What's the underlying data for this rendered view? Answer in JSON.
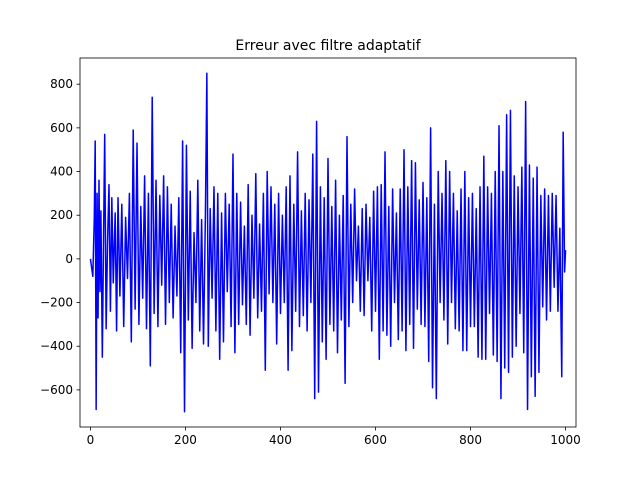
{
  "chart_data": {
    "type": "line",
    "title": "Erreur avec filtre adaptatif",
    "xlabel": "",
    "ylabel": "",
    "xlim": [
      -22,
      1022
    ],
    "ylim": [
      -770,
      920
    ],
    "xticks": [
      0,
      200,
      400,
      600,
      800,
      1000
    ],
    "yticks": [
      -600,
      -400,
      -200,
      0,
      200,
      400,
      600,
      800
    ],
    "grid": false,
    "series": [
      {
        "name": "",
        "color": "#0000ff",
        "points": [
          [
            0,
            0
          ],
          [
            5,
            -80
          ],
          [
            8,
            180
          ],
          [
            10,
            540
          ],
          [
            12,
            -690
          ],
          [
            14,
            300
          ],
          [
            16,
            -270
          ],
          [
            18,
            360
          ],
          [
            20,
            -150
          ],
          [
            22,
            220
          ],
          [
            25,
            -450
          ],
          [
            28,
            180
          ],
          [
            30,
            570
          ],
          [
            33,
            -320
          ],
          [
            36,
            80
          ],
          [
            39,
            340
          ],
          [
            42,
            -240
          ],
          [
            45,
            280
          ],
          [
            48,
            -110
          ],
          [
            52,
            210
          ],
          [
            55,
            -330
          ],
          [
            58,
            280
          ],
          [
            62,
            -170
          ],
          [
            66,
            250
          ],
          [
            70,
            -310
          ],
          [
            74,
            190
          ],
          [
            78,
            -90
          ],
          [
            82,
            300
          ],
          [
            86,
            -380
          ],
          [
            90,
            590
          ],
          [
            94,
            -230
          ],
          [
            98,
            530
          ],
          [
            102,
            -300
          ],
          [
            106,
            240
          ],
          [
            110,
            -180
          ],
          [
            114,
            380
          ],
          [
            118,
            -320
          ],
          [
            122,
            300
          ],
          [
            126,
            -490
          ],
          [
            130,
            740
          ],
          [
            134,
            -250
          ],
          [
            138,
            360
          ],
          [
            142,
            -310
          ],
          [
            146,
            290
          ],
          [
            150,
            -120
          ],
          [
            154,
            380
          ],
          [
            158,
            -300
          ],
          [
            162,
            330
          ],
          [
            166,
            -200
          ],
          [
            170,
            250
          ],
          [
            174,
            -270
          ],
          [
            178,
            150
          ],
          [
            182,
            -170
          ],
          [
            186,
            280
          ],
          [
            190,
            -430
          ],
          [
            194,
            540
          ],
          [
            198,
            -700
          ],
          [
            202,
            520
          ],
          [
            206,
            -280
          ],
          [
            210,
            310
          ],
          [
            214,
            -410
          ],
          [
            218,
            120
          ],
          [
            222,
            -200
          ],
          [
            226,
            360
          ],
          [
            230,
            -330
          ],
          [
            234,
            180
          ],
          [
            238,
            -390
          ],
          [
            242,
            210
          ],
          [
            245,
            850
          ],
          [
            248,
            -400
          ],
          [
            252,
            230
          ],
          [
            256,
            -180
          ],
          [
            260,
            330
          ],
          [
            264,
            -330
          ],
          [
            268,
            300
          ],
          [
            272,
            -460
          ],
          [
            276,
            210
          ],
          [
            280,
            -380
          ],
          [
            284,
            300
          ],
          [
            288,
            -150
          ],
          [
            292,
            250
          ],
          [
            296,
            -310
          ],
          [
            300,
            480
          ],
          [
            304,
            -430
          ],
          [
            308,
            300
          ],
          [
            312,
            -300
          ],
          [
            316,
            260
          ],
          [
            320,
            -210
          ],
          [
            324,
            150
          ],
          [
            328,
            -300
          ],
          [
            332,
            340
          ],
          [
            336,
            -350
          ],
          [
            340,
            200
          ],
          [
            344,
            -180
          ],
          [
            348,
            390
          ],
          [
            352,
            -270
          ],
          [
            356,
            160
          ],
          [
            360,
            -240
          ],
          [
            364,
            300
          ],
          [
            368,
            -510
          ],
          [
            372,
            400
          ],
          [
            376,
            -160
          ],
          [
            380,
            330
          ],
          [
            384,
            -200
          ],
          [
            388,
            250
          ],
          [
            392,
            -390
          ],
          [
            396,
            300
          ],
          [
            400,
            -250
          ],
          [
            404,
            200
          ],
          [
            408,
            -200
          ],
          [
            412,
            330
          ],
          [
            416,
            -510
          ],
          [
            420,
            380
          ],
          [
            424,
            -420
          ],
          [
            428,
            250
          ],
          [
            432,
            -240
          ],
          [
            436,
            490
          ],
          [
            440,
            -310
          ],
          [
            444,
            220
          ],
          [
            448,
            -260
          ],
          [
            452,
            300
          ],
          [
            456,
            -330
          ],
          [
            460,
            270
          ],
          [
            464,
            -200
          ],
          [
            468,
            480
          ],
          [
            472,
            -640
          ],
          [
            476,
            630
          ],
          [
            480,
            -610
          ],
          [
            484,
            330
          ],
          [
            488,
            -380
          ],
          [
            492,
            280
          ],
          [
            496,
            -460
          ],
          [
            500,
            460
          ],
          [
            504,
            -300
          ],
          [
            508,
            240
          ],
          [
            512,
            -330
          ],
          [
            516,
            360
          ],
          [
            520,
            -430
          ],
          [
            524,
            200
          ],
          [
            528,
            -280
          ],
          [
            532,
            290
          ],
          [
            536,
            -570
          ],
          [
            540,
            560
          ],
          [
            544,
            -310
          ],
          [
            548,
            250
          ],
          [
            552,
            -200
          ],
          [
            556,
            320
          ],
          [
            560,
            -100
          ],
          [
            564,
            150
          ],
          [
            568,
            -240
          ],
          [
            572,
            230
          ],
          [
            576,
            -260
          ],
          [
            580,
            250
          ],
          [
            584,
            -100
          ],
          [
            588,
            190
          ],
          [
            592,
            -330
          ],
          [
            596,
            310
          ],
          [
            600,
            -240
          ],
          [
            604,
            330
          ],
          [
            608,
            -460
          ],
          [
            612,
            340
          ],
          [
            616,
            -330
          ],
          [
            620,
            490
          ],
          [
            624,
            -350
          ],
          [
            628,
            240
          ],
          [
            632,
            -400
          ],
          [
            636,
            320
          ],
          [
            640,
            -200
          ],
          [
            644,
            210
          ],
          [
            648,
            -370
          ],
          [
            652,
            320
          ],
          [
            656,
            -330
          ],
          [
            660,
            500
          ],
          [
            664,
            -420
          ],
          [
            668,
            330
          ],
          [
            672,
            -300
          ],
          [
            676,
            450
          ],
          [
            680,
            -410
          ],
          [
            684,
            440
          ],
          [
            688,
            -230
          ],
          [
            692,
            270
          ],
          [
            696,
            -300
          ],
          [
            700,
            350
          ],
          [
            704,
            -310
          ],
          [
            708,
            280
          ],
          [
            712,
            -470
          ],
          [
            716,
            600
          ],
          [
            720,
            -590
          ],
          [
            724,
            250
          ],
          [
            728,
            -640
          ],
          [
            732,
            400
          ],
          [
            736,
            -200
          ],
          [
            740,
            300
          ],
          [
            744,
            -280
          ],
          [
            748,
            450
          ],
          [
            752,
            -390
          ],
          [
            756,
            400
          ],
          [
            760,
            -200
          ],
          [
            764,
            300
          ],
          [
            768,
            -320
          ],
          [
            772,
            220
          ],
          [
            776,
            -330
          ],
          [
            780,
            320
          ],
          [
            784,
            -420
          ],
          [
            788,
            400
          ],
          [
            792,
            -420
          ],
          [
            796,
            280
          ],
          [
            800,
            -310
          ],
          [
            804,
            300
          ],
          [
            808,
            -310
          ],
          [
            812,
            230
          ],
          [
            816,
            -450
          ],
          [
            820,
            330
          ],
          [
            824,
            -460
          ],
          [
            828,
            470
          ],
          [
            832,
            -460
          ],
          [
            836,
            330
          ],
          [
            840,
            -250
          ],
          [
            844,
            300
          ],
          [
            848,
            -440
          ],
          [
            852,
            400
          ],
          [
            856,
            -470
          ],
          [
            860,
            610
          ],
          [
            864,
            -640
          ],
          [
            868,
            400
          ],
          [
            872,
            -500
          ],
          [
            876,
            660
          ],
          [
            880,
            -520
          ],
          [
            884,
            680
          ],
          [
            888,
            -450
          ],
          [
            892,
            380
          ],
          [
            896,
            -400
          ],
          [
            900,
            330
          ],
          [
            904,
            -250
          ],
          [
            908,
            420
          ],
          [
            912,
            -430
          ],
          [
            916,
            720
          ],
          [
            920,
            -690
          ],
          [
            924,
            430
          ],
          [
            928,
            -540
          ],
          [
            932,
            370
          ],
          [
            936,
            -630
          ],
          [
            940,
            420
          ],
          [
            944,
            -520
          ],
          [
            948,
            290
          ],
          [
            952,
            -220
          ],
          [
            956,
            320
          ],
          [
            960,
            -280
          ],
          [
            964,
            290
          ],
          [
            968,
            -240
          ],
          [
            972,
            300
          ],
          [
            976,
            -130
          ],
          [
            980,
            290
          ],
          [
            984,
            -240
          ],
          [
            988,
            140
          ],
          [
            992,
            -540
          ],
          [
            995,
            580
          ],
          [
            998,
            -60
          ],
          [
            1000,
            40
          ]
        ]
      }
    ]
  }
}
